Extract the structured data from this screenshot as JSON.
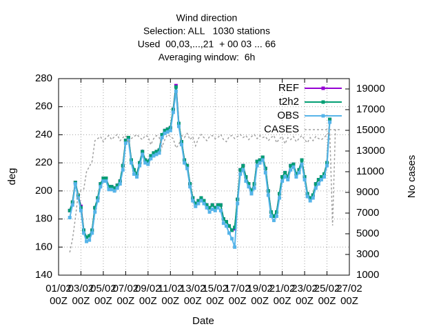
{
  "chart_data": {
    "type": "line",
    "title": [
      "Wind direction",
      "Selection: ALL   1030 stations",
      "Used  00,03,...,21  + 00 03 ... 66",
      "Averaging window:  6h"
    ],
    "xlabel": "Date",
    "ylabel": "deg",
    "y2label": "No cases",
    "xlim": [
      0,
      26
    ],
    "xticks": [
      {
        "value": 0,
        "label": "01/02\n00Z"
      },
      {
        "value": 2,
        "label": "03/02\n00Z"
      },
      {
        "value": 4,
        "label": "05/02\n00Z"
      },
      {
        "value": 6,
        "label": "07/02\n00Z"
      },
      {
        "value": 8,
        "label": "09/02\n00Z"
      },
      {
        "value": 10,
        "label": "11/02\n00Z"
      },
      {
        "value": 12,
        "label": "13/02\n00Z"
      },
      {
        "value": 14,
        "label": "15/02\n00Z"
      },
      {
        "value": 16,
        "label": "17/02\n00Z"
      },
      {
        "value": 18,
        "label": "19/02\n00Z"
      },
      {
        "value": 20,
        "label": "21/02\n00Z"
      },
      {
        "value": 22,
        "label": "23/02\n00Z"
      },
      {
        "value": 24,
        "label": "25/02\n00Z"
      },
      {
        "value": 26,
        "label": "27/02\n00Z"
      }
    ],
    "ylim": [
      140,
      280
    ],
    "yticks": [
      140,
      160,
      180,
      200,
      220,
      240,
      260,
      280
    ],
    "y2lim": [
      1000,
      20000
    ],
    "y2ticks": [
      1000,
      3000,
      5000,
      7000,
      9000,
      11000,
      13000,
      15000,
      17000,
      19000
    ],
    "grid": true,
    "legend": "upper right",
    "x": [
      1,
      1.25,
      1.5,
      1.75,
      2,
      2.25,
      2.5,
      2.75,
      3,
      3.25,
      3.5,
      3.75,
      4,
      4.25,
      4.5,
      4.75,
      5,
      5.25,
      5.5,
      5.75,
      6,
      6.25,
      6.5,
      6.75,
      7,
      7.25,
      7.5,
      7.75,
      8,
      8.25,
      8.5,
      8.75,
      9,
      9.25,
      9.5,
      9.75,
      10,
      10.25,
      10.5,
      10.75,
      11,
      11.25,
      11.5,
      11.75,
      12,
      12.25,
      12.5,
      12.75,
      13,
      13.25,
      13.5,
      13.75,
      14,
      14.25,
      14.5,
      14.75,
      15,
      15.25,
      15.5,
      15.75,
      16,
      16.25,
      16.5,
      16.75,
      17,
      17.25,
      17.5,
      17.75,
      18,
      18.25,
      18.5,
      18.75,
      19,
      19.25,
      19.5,
      19.75,
      20,
      20.25,
      20.5,
      20.75,
      21,
      21.25,
      21.5,
      21.75,
      22,
      22.25,
      22.5,
      22.75,
      23,
      23.25,
      23.5,
      23.75,
      24,
      24.25
    ],
    "series": [
      {
        "name": "REF",
        "color": "#9400d3",
        "values": [
          186,
          192,
          206,
          197,
          189,
          172,
          167,
          168,
          172,
          188,
          195,
          205,
          209,
          209,
          203,
          203,
          202,
          204,
          207,
          218,
          236,
          238,
          222,
          215,
          212,
          220,
          228,
          222,
          221,
          225,
          227,
          228,
          229,
          240,
          243,
          244,
          245,
          258,
          275,
          248,
          235,
          222,
          218,
          205,
          195,
          191,
          193,
          195,
          193,
          190,
          188,
          190,
          188,
          190,
          190,
          180,
          178,
          175,
          172,
          173,
          194,
          215,
          218,
          210,
          205,
          200,
          205,
          221,
          222,
          224,
          216,
          200,
          185,
          182,
          185,
          198,
          210,
          213,
          210,
          218,
          219,
          212,
          215,
          222,
          210,
          198,
          195,
          197,
          205,
          208,
          210,
          212,
          220,
          251
        ]
      },
      {
        "name": "t2h2",
        "color": "#009e73",
        "values": [
          186,
          192,
          206,
          197,
          188,
          172,
          167,
          168,
          172,
          188,
          195,
          205,
          209,
          209,
          203,
          203,
          202,
          204,
          207,
          218,
          236,
          238,
          222,
          215,
          212,
          220,
          228,
          222,
          221,
          225,
          227,
          228,
          229,
          240,
          243,
          244,
          245,
          258,
          274,
          248,
          235,
          222,
          218,
          205,
          195,
          191,
          193,
          195,
          193,
          190,
          188,
          190,
          188,
          190,
          190,
          180,
          178,
          175,
          172,
          174,
          194,
          215,
          218,
          210,
          205,
          200,
          205,
          221,
          222,
          224,
          216,
          200,
          185,
          182,
          185,
          198,
          210,
          213,
          210,
          218,
          219,
          212,
          215,
          222,
          210,
          198,
          195,
          197,
          205,
          208,
          210,
          212,
          220,
          251
        ]
      },
      {
        "name": "OBS",
        "color": "#56b4e9",
        "values": [
          181,
          190,
          205,
          195,
          186,
          170,
          164,
          165,
          170,
          185,
          193,
          203,
          207,
          207,
          201,
          201,
          200,
          202,
          205,
          215,
          234,
          236,
          220,
          212,
          210,
          218,
          226,
          220,
          219,
          223,
          225,
          226,
          227,
          238,
          241,
          242,
          243,
          256,
          271,
          246,
          233,
          220,
          216,
          203,
          193,
          189,
          191,
          193,
          191,
          188,
          185,
          187,
          186,
          188,
          186,
          177,
          175,
          170,
          166,
          160,
          191,
          212,
          215,
          207,
          203,
          198,
          202,
          218,
          220,
          222,
          213,
          197,
          182,
          179,
          182,
          195,
          207,
          210,
          208,
          215,
          217,
          210,
          213,
          219,
          208,
          196,
          193,
          195,
          202,
          205,
          208,
          210,
          218,
          249
        ]
      },
      {
        "name": "CASES",
        "color": "#a0a0a0",
        "axis": "y2",
        "x": [
          1,
          1.25,
          1.5,
          1.75,
          2,
          2.25,
          2.5,
          2.75,
          3,
          3.25,
          3.5,
          3.75,
          4,
          4.25,
          4.5,
          4.75,
          5,
          5.25,
          5.5,
          5.75,
          6,
          6.25,
          6.5,
          6.75,
          7,
          7.25,
          7.5,
          7.75,
          8,
          8.25,
          8.5,
          8.75,
          9,
          9.25,
          9.5,
          9.75,
          10,
          10.25,
          10.5,
          10.75,
          11,
          11.25,
          11.5,
          11.75,
          12,
          12.25,
          12.5,
          12.75,
          13,
          13.25,
          13.5,
          13.75,
          14,
          14.25,
          14.5,
          14.75,
          15,
          15.25,
          15.5,
          15.75,
          16,
          16.25,
          16.5,
          16.75,
          17,
          17.25,
          17.5,
          17.75,
          18,
          18.25,
          18.5,
          18.75,
          19,
          19.25,
          19.5,
          19.75,
          20,
          20.25,
          20.5,
          20.75,
          21,
          21.25,
          21.5,
          21.75,
          22,
          22.25,
          22.5,
          22.75,
          23,
          23.25,
          23.5,
          23.75,
          24,
          24.25,
          24.5,
          24.75
        ],
        "values": [
          3200,
          4500,
          6500,
          8800,
          9200,
          9300,
          11000,
          11500,
          12000,
          14000,
          14200,
          14400,
          13900,
          14300,
          14500,
          14100,
          14400,
          14600,
          14000,
          14300,
          14500,
          13800,
          14200,
          14400,
          14600,
          14300,
          14100,
          14500,
          14400,
          13600,
          14200,
          14500,
          14300,
          13400,
          14100,
          14600,
          14400,
          14200,
          13300,
          13600,
          14500,
          14300,
          14700,
          14100,
          14400,
          13500,
          14200,
          14600,
          14300,
          14000,
          14400,
          14500,
          14200,
          14300,
          14600,
          14100,
          13900,
          14400,
          14500,
          14200,
          14400,
          14600,
          14300,
          14500,
          14100,
          14400,
          14600,
          14200,
          14500,
          14300,
          14400,
          14000,
          14300,
          14500,
          13800,
          14200,
          14400,
          13700,
          14300,
          14100,
          14400,
          13900,
          14200,
          14500,
          14100,
          13800,
          14300,
          14000,
          14400,
          14200,
          14100,
          14300,
          14600,
          14800,
          5800,
          15100
        ]
      }
    ]
  }
}
